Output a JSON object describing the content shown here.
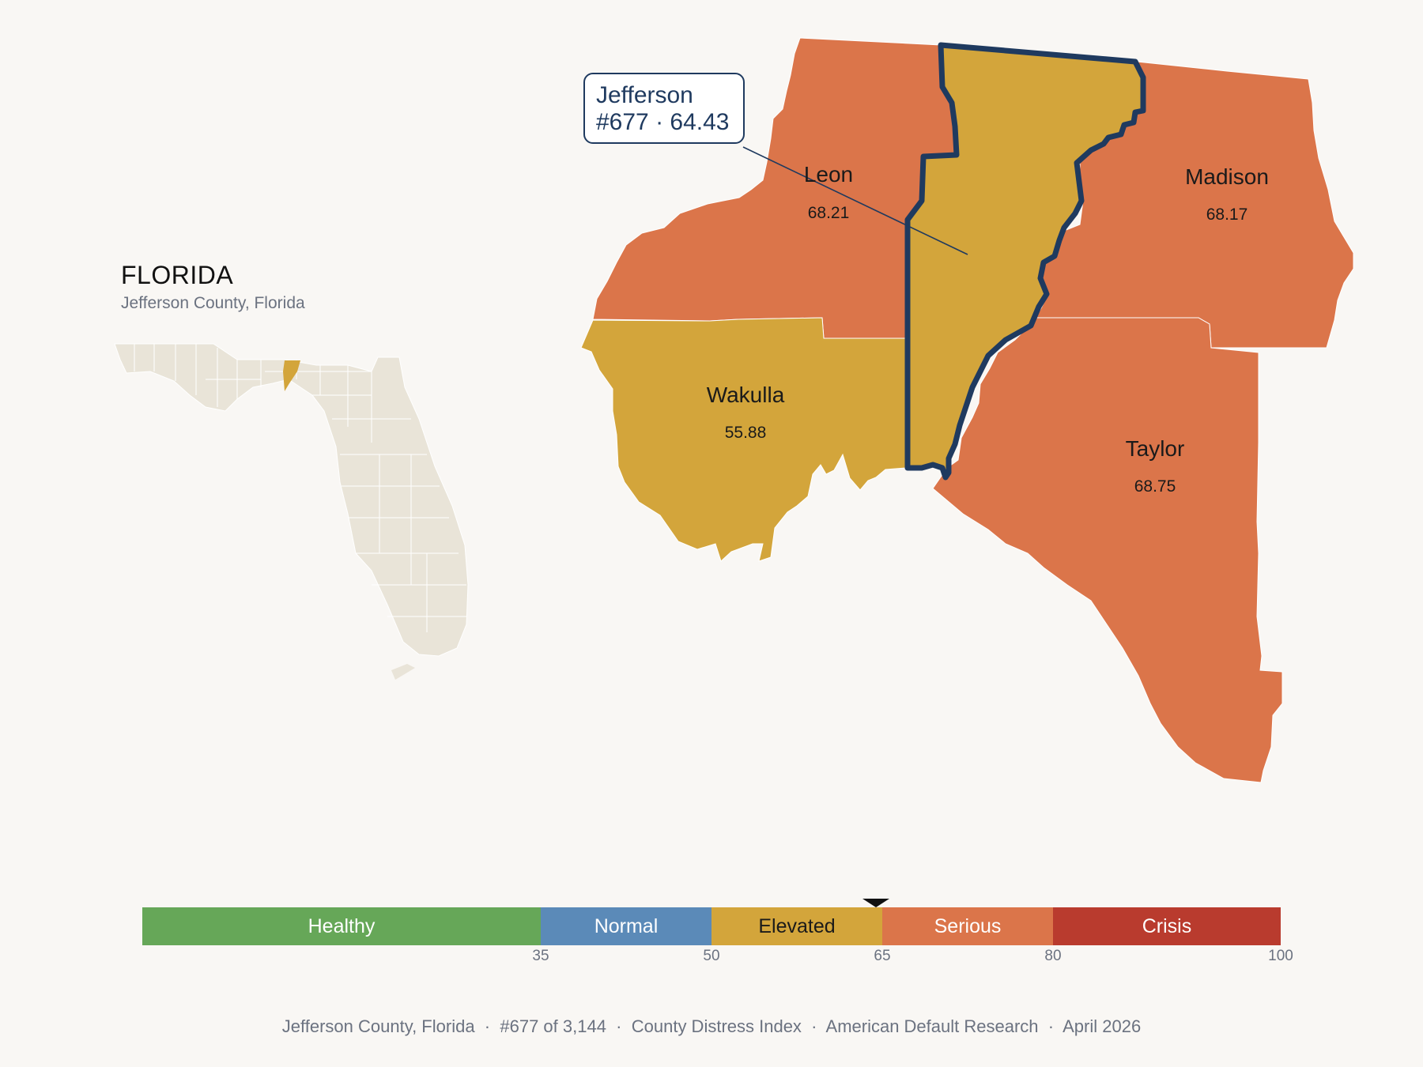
{
  "state": {
    "title": "FLORIDA",
    "subtitle": "Jefferson County, Florida"
  },
  "callout": {
    "county": "Jefferson",
    "detail": "#677 · 64.43"
  },
  "counties": [
    {
      "name": "Leon",
      "score": "68.21",
      "category": "Serious"
    },
    {
      "name": "Madison",
      "score": "68.17",
      "category": "Serious"
    },
    {
      "name": "Wakulla",
      "score": "55.88",
      "category": "Elevated"
    },
    {
      "name": "Taylor",
      "score": "68.75",
      "category": "Serious"
    },
    {
      "name": "Jefferson",
      "score": "64.43",
      "category": "Elevated",
      "highlighted": true
    }
  ],
  "legend": {
    "segments": [
      {
        "label": "Healthy",
        "color": "#66a758"
      },
      {
        "label": "Normal",
        "color": "#5b8ab8"
      },
      {
        "label": "Elevated",
        "color": "#d3a53b"
      },
      {
        "label": "Serious",
        "color": "#db754a"
      },
      {
        "label": "Crisis",
        "color": "#b93b2e"
      }
    ],
    "ticks": [
      "35",
      "50",
      "65",
      "80",
      "100"
    ],
    "marker_value": 64.43
  },
  "colors": {
    "serious": "#db754a",
    "elevated": "#d3a53b",
    "highlight_outline": "#1f3a5f",
    "inset_land": "#e9e4d8"
  },
  "footer": {
    "county": "Jefferson County, Florida",
    "rank": "#677 of 3,144",
    "index": "County Distress Index",
    "source": "American Default Research",
    "date": "April 2026"
  }
}
